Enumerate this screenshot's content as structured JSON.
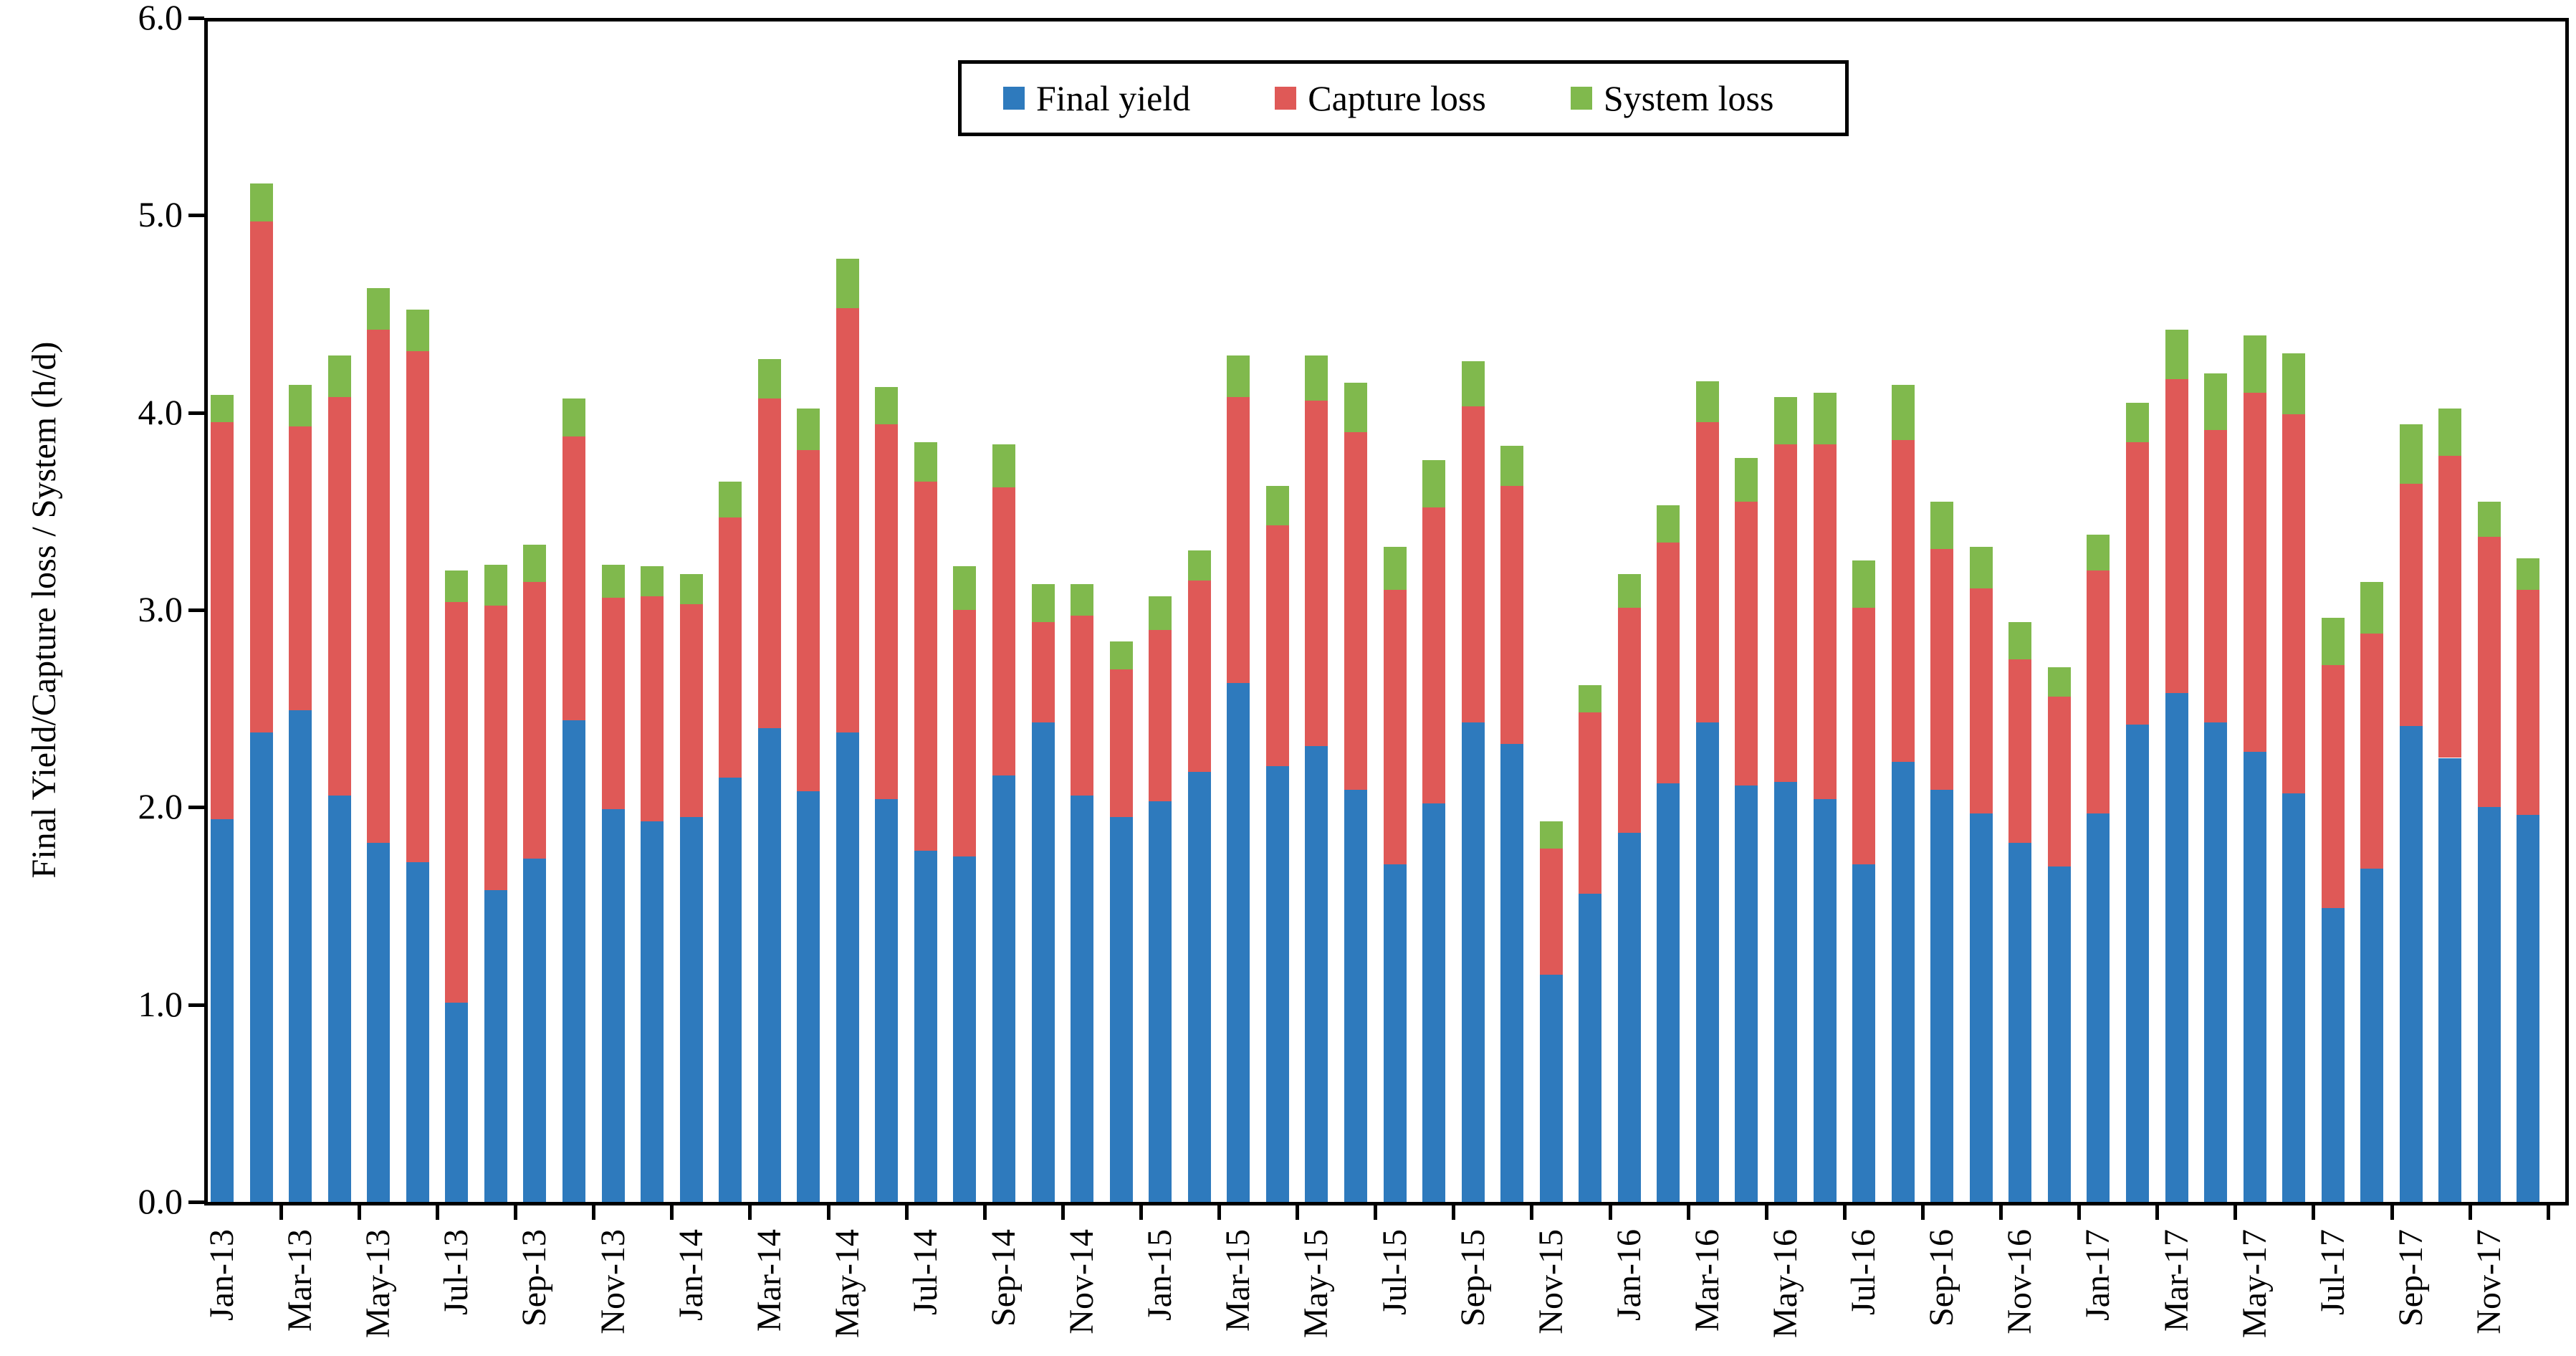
{
  "chart_data": {
    "type": "bar",
    "stacked": true,
    "title": "",
    "xlabel": "",
    "ylabel": "Final Yield/Capture loss / System (h/d)",
    "ylim": [
      0.0,
      6.0
    ],
    "y_tick_labels": [
      "0.0",
      "1.0",
      "2.0",
      "3.0",
      "4.0",
      "5.0",
      "6.0"
    ],
    "x_label_shown_every": 2,
    "grid": false,
    "legend_position": "top-center-boxed",
    "categories": [
      "Jan-13",
      "Feb-13",
      "Mar-13",
      "Apr-13",
      "May-13",
      "Jun-13",
      "Jul-13",
      "Aug-13",
      "Sep-13",
      "Oct-13",
      "Nov-13",
      "Dec-13",
      "Jan-14",
      "Feb-14",
      "Mar-14",
      "Apr-14",
      "May-14",
      "Jun-14",
      "Jul-14",
      "Aug-14",
      "Sep-14",
      "Oct-14",
      "Nov-14",
      "Dec-14",
      "Jan-15",
      "Feb-15",
      "Mar-15",
      "Apr-15",
      "May-15",
      "Jun-15",
      "Jul-15",
      "Aug-15",
      "Sep-15",
      "Oct-15",
      "Nov-15",
      "Dec-15",
      "Jan-16",
      "Feb-16",
      "Mar-16",
      "Apr-16",
      "May-16",
      "Jun-16",
      "Jul-16",
      "Aug-16",
      "Sep-16",
      "Oct-16",
      "Nov-16",
      "Dec-16",
      "Jan-17",
      "Feb-17",
      "Mar-17",
      "Apr-17",
      "May-17",
      "Jun-17",
      "Jul-17",
      "Aug-17",
      "Sep-17",
      "Oct-17",
      "Nov-17",
      "Dec-17"
    ],
    "series": [
      {
        "name": "Final yield",
        "color": "#2E7ABD",
        "values": [
          1.94,
          2.38,
          2.49,
          2.06,
          1.82,
          1.72,
          1.01,
          1.58,
          1.74,
          2.44,
          1.99,
          1.93,
          1.95,
          2.15,
          2.4,
          2.08,
          2.38,
          2.04,
          1.78,
          1.75,
          2.16,
          2.43,
          2.06,
          1.95,
          2.03,
          2.18,
          2.63,
          2.21,
          2.31,
          2.09,
          1.71,
          2.02,
          2.43,
          2.32,
          1.15,
          1.56,
          1.87,
          2.12,
          2.43,
          2.11,
          2.13,
          2.04,
          1.71,
          2.23,
          2.09,
          1.97,
          1.82,
          1.7,
          1.97,
          2.42,
          2.58,
          2.43,
          2.28,
          2.07,
          1.49,
          1.69,
          2.41,
          2.25,
          2.0,
          1.96
        ]
      },
      {
        "name": "Capture loss",
        "color": "#DF5957",
        "values": [
          2.01,
          2.59,
          1.44,
          2.02,
          2.6,
          2.59,
          2.03,
          1.44,
          1.4,
          1.44,
          1.07,
          1.14,
          1.08,
          1.32,
          1.67,
          1.73,
          2.15,
          1.9,
          1.87,
          1.25,
          1.46,
          0.51,
          0.91,
          0.75,
          0.87,
          0.97,
          1.45,
          1.22,
          1.75,
          1.81,
          1.39,
          1.5,
          1.6,
          1.31,
          0.64,
          0.92,
          1.14,
          1.22,
          1.52,
          1.44,
          1.71,
          1.8,
          1.3,
          1.63,
          1.22,
          1.14,
          0.93,
          0.86,
          1.23,
          1.43,
          1.59,
          1.48,
          1.82,
          1.92,
          1.23,
          1.19,
          1.23,
          1.53,
          1.37,
          1.14
        ]
      },
      {
        "name": "System loss",
        "color": "#80B94D",
        "values": [
          0.14,
          0.19,
          0.21,
          0.21,
          0.21,
          0.21,
          0.16,
          0.21,
          0.19,
          0.19,
          0.17,
          0.15,
          0.15,
          0.18,
          0.2,
          0.21,
          0.25,
          0.19,
          0.2,
          0.22,
          0.22,
          0.19,
          0.16,
          0.14,
          0.17,
          0.15,
          0.21,
          0.2,
          0.23,
          0.25,
          0.22,
          0.24,
          0.23,
          0.2,
          0.14,
          0.14,
          0.17,
          0.19,
          0.21,
          0.22,
          0.24,
          0.26,
          0.24,
          0.28,
          0.24,
          0.21,
          0.19,
          0.15,
          0.18,
          0.2,
          0.25,
          0.29,
          0.29,
          0.31,
          0.24,
          0.26,
          0.3,
          0.24,
          0.18,
          0.16
        ]
      }
    ],
    "axis_color": "#000000",
    "background_color": "#FFFFFF"
  }
}
